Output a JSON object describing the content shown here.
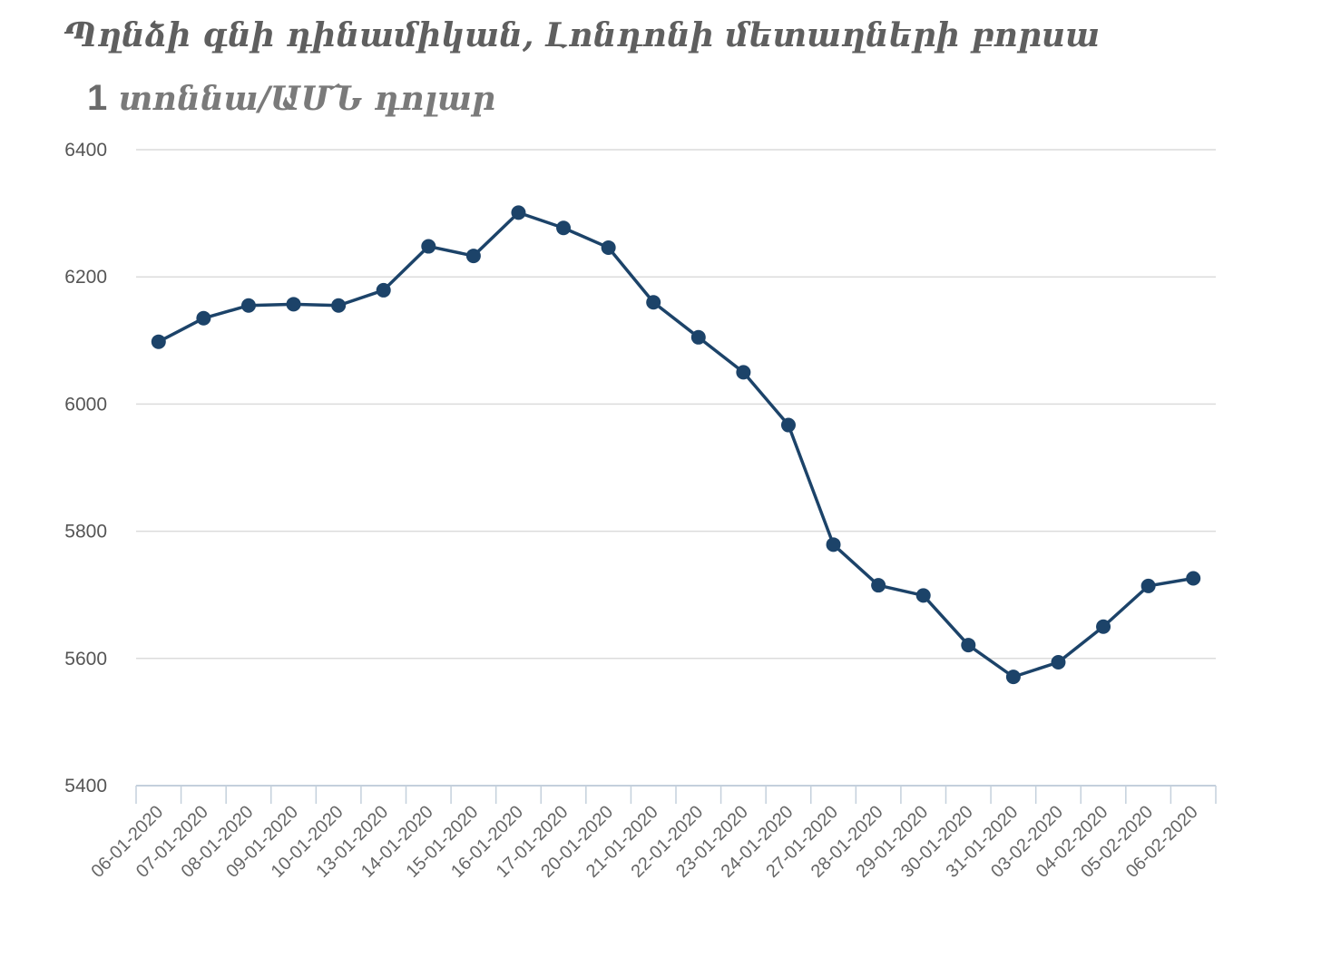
{
  "chart_data": {
    "type": "line",
    "title": "Պղնձի գնի դինամիկան, Լոնդոնի մետաղների բորսա",
    "subtitle_number": "1",
    "subtitle_text": "տոննա/ԱՄՆ դոլար",
    "categories": [
      "06-01-2020",
      "07-01-2020",
      "08-01-2020",
      "09-01-2020",
      "10-01-2020",
      "13-01-2020",
      "14-01-2020",
      "15-01-2020",
      "16-01-2020",
      "17-01-2020",
      "20-01-2020",
      "21-01-2020",
      "22-01-2020",
      "23-01-2020",
      "24-01-2020",
      "27-01-2020",
      "28-01-2020",
      "29-01-2020",
      "30-01-2020",
      "31-01-2020",
      "03-02-2020",
      "04-02-2020",
      "05-02-2020",
      "06-02-2020"
    ],
    "series": [
      {
        "values": [
          6098,
          6135,
          6155,
          6157,
          6155,
          6179,
          6248,
          6233,
          6301,
          6277,
          6246,
          6160,
          6105,
          6050,
          5967,
          5779,
          5715,
          5699,
          5621,
          5571,
          5594,
          5650,
          5714,
          5726
        ],
        "color": "#1c4369"
      }
    ],
    "ylim": [
      5400,
      6400
    ],
    "yticks": [
      5400,
      5600,
      5800,
      6000,
      6200,
      6400
    ],
    "xlabel": "",
    "ylabel": "",
    "grid": true,
    "legend": "none"
  }
}
